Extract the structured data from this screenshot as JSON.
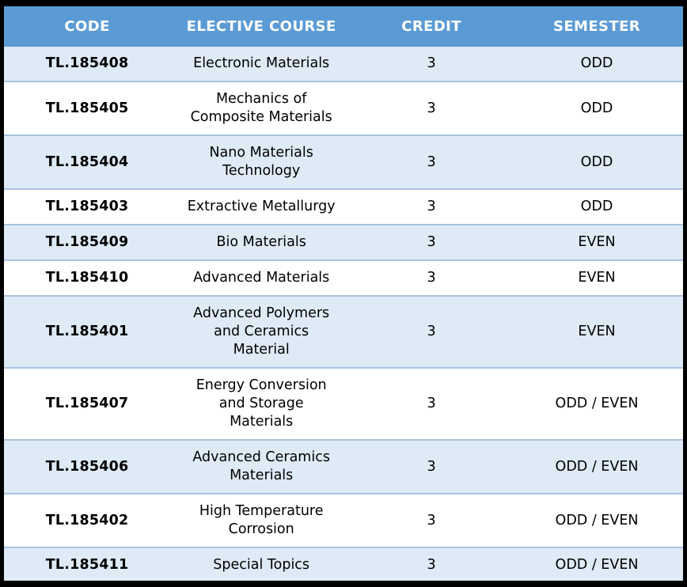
{
  "table": {
    "title": "Elective courses table",
    "columns": [
      {
        "key": "code",
        "label": "CODE"
      },
      {
        "key": "course",
        "label": "ELECTIVE COURSE"
      },
      {
        "key": "credit",
        "label": "CREDIT"
      },
      {
        "key": "semester",
        "label": "SEMESTER"
      }
    ],
    "rows": [
      {
        "code": "TL.185408",
        "course": "Electronic Materials",
        "credit": "3",
        "semester": "ODD"
      },
      {
        "code": "TL.185405",
        "course": "Mechanics of\nComposite Materials",
        "credit": "3",
        "semester": "ODD"
      },
      {
        "code": "TL.185404",
        "course": "Nano Materials\nTechnology",
        "credit": "3",
        "semester": "ODD"
      },
      {
        "code": "TL.185403",
        "course": "Extractive Metallurgy",
        "credit": "3",
        "semester": "ODD"
      },
      {
        "code": "TL.185409",
        "course": "Bio Materials",
        "credit": "3",
        "semester": "EVEN"
      },
      {
        "code": "TL.185410",
        "course": "Advanced Materials",
        "credit": "3",
        "semester": "EVEN"
      },
      {
        "code": "TL.185401",
        "course": "Advanced Polymers\nand Ceramics\nMaterial",
        "credit": "3",
        "semester": "EVEN"
      },
      {
        "code": "TL.185407",
        "course": "Energy Conversion\nand Storage\nMaterials",
        "credit": "3",
        "semester": "ODD / EVEN"
      },
      {
        "code": "TL.185406",
        "course": "Advanced Ceramics\nMaterials",
        "credit": "3",
        "semester": "ODD / EVEN"
      },
      {
        "code": "TL.185402",
        "course": "High Temperature\nCorrosion",
        "credit": "3",
        "semester": "ODD / EVEN"
      },
      {
        "code": "TL.185411",
        "course": "Special Topics",
        "credit": "3",
        "semester": "ODD / EVEN"
      }
    ],
    "colors": {
      "header_bg": "#5B9BD5",
      "header_text": "#FFFFFF",
      "band_bg": "#DEEAF6",
      "white_bg": "#FFFFFF",
      "row_border": "#A8C4E0",
      "frame": "#000000"
    }
  }
}
